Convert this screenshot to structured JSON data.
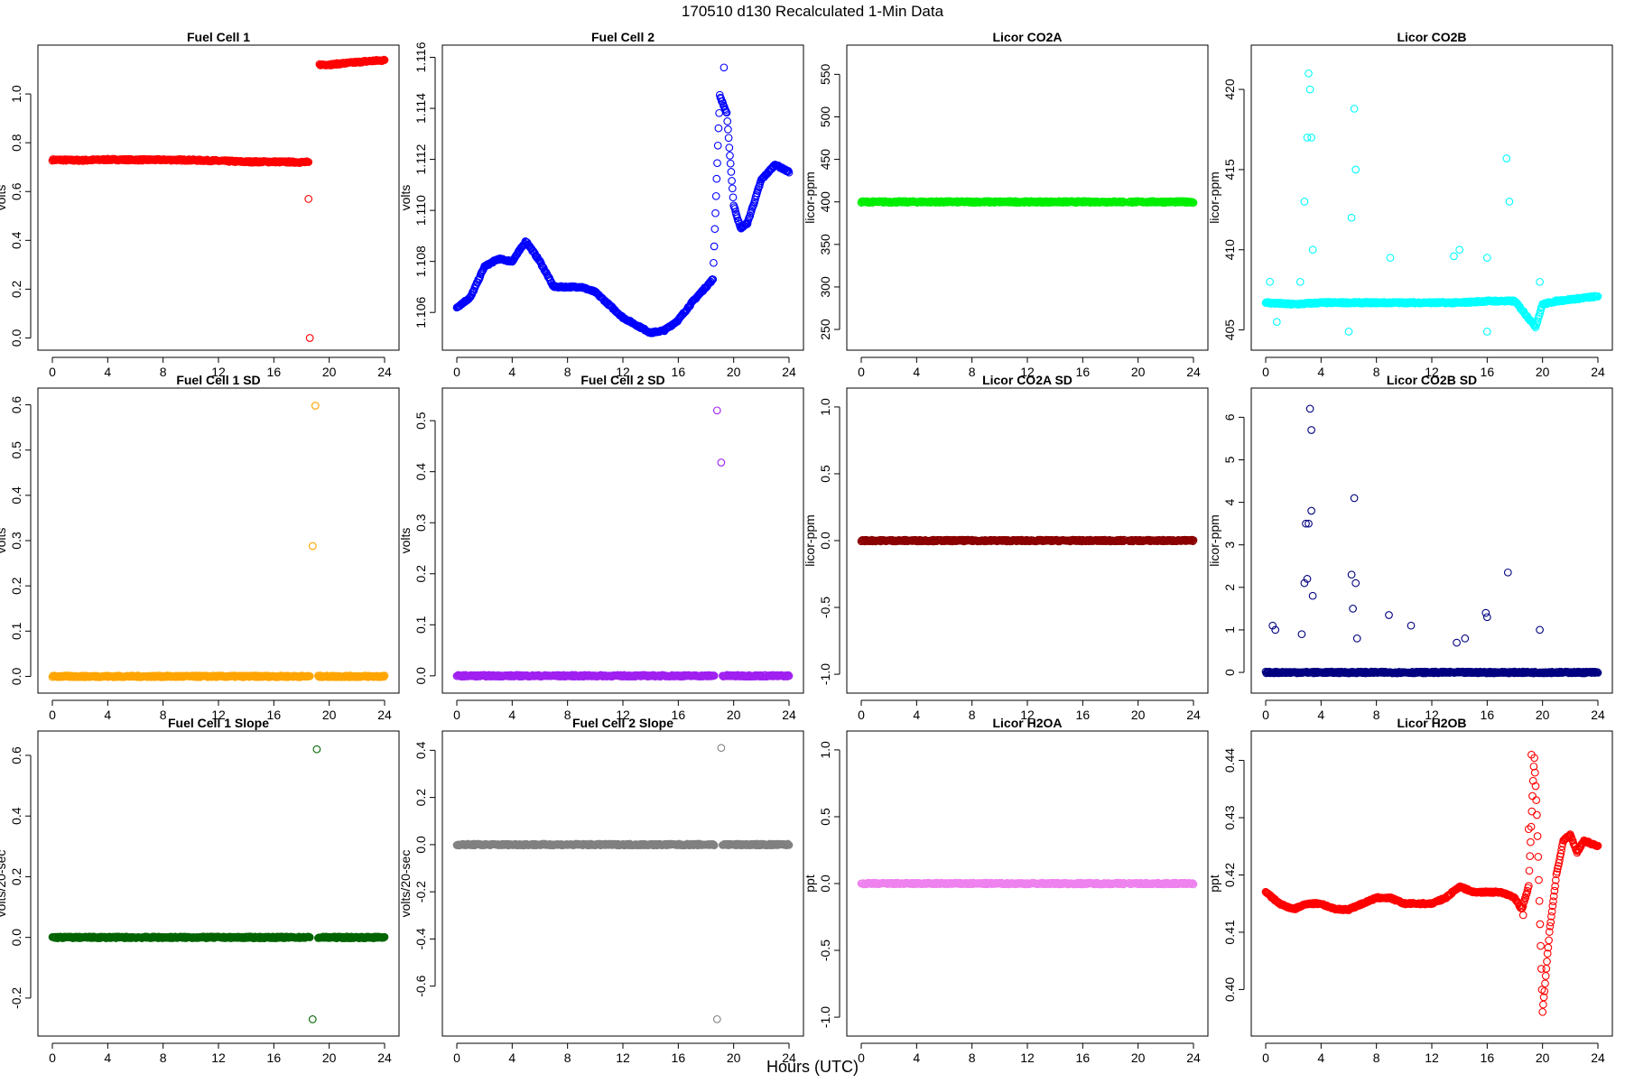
{
  "figure": {
    "title": "170510    d130    Recalculated 1-Min Data",
    "xlabel": "Hours (UTC)"
  },
  "chart_data": [
    {
      "type": "scatter",
      "title": "Fuel Cell 1",
      "ylabel": "volts",
      "color": "#ff0000",
      "xlim": [
        0,
        24
      ],
      "ylim": [
        0,
        1.15
      ],
      "xticks": [
        "0",
        "4",
        "8",
        "12",
        "16",
        "20",
        "24"
      ],
      "yticks": [
        "0.0",
        "0.2",
        "0.4",
        "0.6",
        "0.8",
        "1.0"
      ],
      "series": [
        {
          "x": [
            0,
            2,
            4,
            6,
            8,
            10,
            12,
            14,
            16,
            18.5
          ],
          "y": [
            0.73,
            0.728,
            0.731,
            0.73,
            0.73,
            0.729,
            0.726,
            0.722,
            0.722,
            0.72
          ]
        },
        {
          "x": [
            19.3,
            20,
            21,
            22,
            23,
            24
          ],
          "y": [
            1.12,
            1.12,
            1.125,
            1.13,
            1.135,
            1.138
          ]
        }
      ],
      "outliers": {
        "x": [
          18.5,
          18.6
        ],
        "y": [
          0.57,
          0.0
        ]
      }
    },
    {
      "type": "scatter",
      "title": "Fuel Cell 2",
      "ylabel": "volts",
      "color": "#0000ff",
      "xlim": [
        0,
        24
      ],
      "ylim": [
        1.105,
        1.116
      ],
      "xticks": [
        "0",
        "4",
        "8",
        "12",
        "16",
        "20",
        "24"
      ],
      "yticks": [
        "1.106",
        "1.108",
        "1.110",
        "1.112",
        "1.114",
        "1.116"
      ],
      "series": [
        {
          "x": [
            0,
            1,
            2,
            3,
            4,
            5,
            6,
            7,
            8,
            9,
            10,
            11,
            12,
            13,
            14,
            15,
            16,
            17,
            18,
            18.5,
            19,
            19.5,
            20,
            20.5,
            21,
            22,
            23,
            24
          ],
          "y": [
            1.1062,
            1.1066,
            1.1078,
            1.1081,
            1.108,
            1.1088,
            1.108,
            1.107,
            1.107,
            1.107,
            1.1068,
            1.1063,
            1.1058,
            1.1055,
            1.1052,
            1.1053,
            1.1057,
            1.1064,
            1.107,
            1.1073,
            1.1145,
            1.1138,
            1.1102,
            1.1093,
            1.1095,
            1.1112,
            1.1118,
            1.1115
          ]
        }
      ],
      "outliers": {
        "x": [
          19.3
        ],
        "y": [
          1.1156
        ]
      }
    },
    {
      "type": "scatter",
      "title": "Licor CO2A",
      "ylabel": "licor-ppm",
      "color": "#00ee00",
      "xlim": [
        0,
        24
      ],
      "ylim": [
        240,
        570
      ],
      "xticks": [
        "0",
        "4",
        "8",
        "12",
        "16",
        "20",
        "24"
      ],
      "yticks": [
        "250",
        "300",
        "350",
        "400",
        "450",
        "500",
        "550"
      ],
      "series": [
        {
          "x": [
            0,
            19
          ],
          "y": [
            400,
            400
          ]
        },
        {
          "x": [
            19.3,
            24
          ],
          "y": [
            400,
            400
          ]
        }
      ],
      "outliers": {
        "x": [],
        "y": []
      }
    },
    {
      "type": "scatter",
      "title": "Licor CO2B",
      "ylabel": "licor-ppm",
      "color": "#00ffff",
      "xlim": [
        0,
        24
      ],
      "ylim": [
        404.5,
        422
      ],
      "xticks": [
        "0",
        "4",
        "8",
        "12",
        "16",
        "20",
        "24"
      ],
      "yticks": [
        "405",
        "410",
        "415",
        "420"
      ],
      "series": [
        {
          "x": [
            0,
            2,
            4,
            6,
            8,
            10,
            12,
            14,
            16,
            18,
            19.5,
            20,
            21,
            22,
            23,
            24
          ],
          "y": [
            406.7,
            406.6,
            406.7,
            406.7,
            406.7,
            406.7,
            406.7,
            406.7,
            406.8,
            406.8,
            405.2,
            406.6,
            406.8,
            406.9,
            407.0,
            407.1
          ]
        }
      ],
      "outliers": {
        "x": [
          2.5,
          2.8,
          3.0,
          3.1,
          3.2,
          3.3,
          3.4,
          6.2,
          6.4,
          6.5,
          9.0,
          13.6,
          14.0,
          16.0,
          17.4,
          17.6,
          19.8,
          0.3,
          0.8,
          6.0,
          16.0
        ],
        "y": [
          408,
          413,
          417,
          421,
          420,
          417,
          410,
          412,
          418.8,
          415,
          409.5,
          409.6,
          410,
          409.5,
          415.7,
          413,
          408,
          408,
          405.5,
          404.9,
          404.9
        ]
      }
    },
    {
      "type": "scatter",
      "title": "Fuel Cell 1 SD",
      "ylabel": "volts",
      "color": "#ffa500",
      "xlim": [
        0,
        24
      ],
      "ylim": [
        -0.01,
        0.61
      ],
      "xticks": [
        "0",
        "4",
        "8",
        "12",
        "16",
        "20",
        "24"
      ],
      "yticks": [
        "0.0",
        "0.1",
        "0.2",
        "0.3",
        "0.4",
        "0.5",
        "0.6"
      ],
      "series": [
        {
          "x": [
            0,
            18.6
          ],
          "y": [
            0,
            0
          ]
        },
        {
          "x": [
            19.2,
            24
          ],
          "y": [
            0,
            0
          ]
        }
      ],
      "outliers": {
        "x": [
          18.8,
          19.0
        ],
        "y": [
          0.288,
          0.598
        ]
      }
    },
    {
      "type": "scatter",
      "title": "Fuel Cell 2 SD",
      "ylabel": "volts",
      "color": "#a020f0",
      "xlim": [
        0,
        24
      ],
      "ylim": [
        -0.01,
        0.54
      ],
      "xticks": [
        "0",
        "4",
        "8",
        "12",
        "16",
        "20",
        "24"
      ],
      "yticks": [
        "0.0",
        "0.1",
        "0.2",
        "0.3",
        "0.4",
        "0.5"
      ],
      "series": [
        {
          "x": [
            0,
            18.6
          ],
          "y": [
            0,
            0
          ]
        },
        {
          "x": [
            19.2,
            24
          ],
          "y": [
            0,
            0
          ]
        }
      ],
      "outliers": {
        "x": [
          18.8,
          19.1
        ],
        "y": [
          0.52,
          0.418
        ]
      }
    },
    {
      "type": "scatter",
      "title": "Licor CO2A SD",
      "ylabel": "licor-ppm",
      "color": "#8b0000",
      "xlim": [
        0,
        24
      ],
      "ylim": [
        -1.05,
        1.05
      ],
      "xticks": [
        "0",
        "4",
        "8",
        "12",
        "16",
        "20",
        "24"
      ],
      "yticks": [
        "-1.0",
        "-0.5",
        "0.0",
        "0.5",
        "1.0"
      ],
      "series": [
        {
          "x": [
            0,
            19
          ],
          "y": [
            0,
            0
          ]
        },
        {
          "x": [
            19.3,
            24
          ],
          "y": [
            0,
            0
          ]
        }
      ],
      "outliers": {
        "x": [],
        "y": []
      }
    },
    {
      "type": "scatter",
      "title": "Licor CO2B SD",
      "ylabel": "licor-ppm",
      "color": "#000080",
      "xlim": [
        0,
        24
      ],
      "ylim": [
        -0.2,
        6.4
      ],
      "xticks": [
        "0",
        "4",
        "8",
        "12",
        "16",
        "20",
        "24"
      ],
      "yticks": [
        "0",
        "1",
        "2",
        "3",
        "4",
        "5",
        "6"
      ],
      "series": [
        {
          "x": [
            0,
            24
          ],
          "y": [
            0,
            0
          ]
        }
      ],
      "outliers": {
        "x": [
          0.5,
          0.7,
          2.8,
          2.9,
          3.0,
          3.1,
          3.2,
          3.3,
          3.3,
          3.4,
          2.6,
          6.2,
          6.4,
          6.5,
          6.3,
          6.6,
          8.9,
          10.5,
          13.8,
          14.4,
          15.9,
          16.0,
          17.5,
          19.8
        ],
        "y": [
          1.1,
          1.0,
          2.1,
          3.5,
          2.2,
          3.5,
          6.2,
          5.7,
          3.8,
          1.8,
          0.9,
          2.3,
          4.1,
          2.1,
          1.5,
          0.8,
          1.35,
          1.1,
          0.7,
          0.8,
          1.4,
          1.3,
          2.35,
          1.0
        ]
      }
    },
    {
      "type": "scatter",
      "title": "Fuel Cell 1 Slope",
      "ylabel": "volts/20-sec",
      "color": "#006400",
      "xlim": [
        0,
        24
      ],
      "ylim": [
        -0.285,
        0.64
      ],
      "xticks": [
        "0",
        "4",
        "8",
        "12",
        "16",
        "20",
        "24"
      ],
      "yticks": [
        "-0.2",
        "0.0",
        "0.2",
        "0.4",
        "0.6"
      ],
      "series": [
        {
          "x": [
            0,
            18.6
          ],
          "y": [
            0,
            0
          ]
        },
        {
          "x": [
            19.2,
            24
          ],
          "y": [
            0,
            0
          ]
        }
      ],
      "outliers": {
        "x": [
          18.8,
          19.1
        ],
        "y": [
          -0.27,
          0.62
        ]
      }
    },
    {
      "type": "scatter",
      "title": "Fuel Cell 2 Slope",
      "ylabel": "volts/20-sec",
      "color": "#808080",
      "xlim": [
        0,
        24
      ],
      "ylim": [
        -0.76,
        0.43
      ],
      "xticks": [
        "0",
        "4",
        "8",
        "12",
        "16",
        "20",
        "24"
      ],
      "yticks": [
        "-0.6",
        "-0.4",
        "-0.2",
        "0.0",
        "0.2",
        "0.4"
      ],
      "series": [
        {
          "x": [
            0,
            18.6
          ],
          "y": [
            0,
            0
          ]
        },
        {
          "x": [
            19.2,
            24
          ],
          "y": [
            0,
            0
          ]
        }
      ],
      "outliers": {
        "x": [
          18.8,
          19.1
        ],
        "y": [
          -0.74,
          0.41
        ]
      }
    },
    {
      "type": "scatter",
      "title": "Licor H2OA",
      "ylabel": "ppt",
      "color": "#ee82ee",
      "xlim": [
        0,
        24
      ],
      "ylim": [
        -1.05,
        1.05
      ],
      "xticks": [
        "0",
        "4",
        "8",
        "12",
        "16",
        "20",
        "24"
      ],
      "yticks": [
        "-1.0",
        "-0.5",
        "0.0",
        "0.5",
        "1.0"
      ],
      "series": [
        {
          "x": [
            0,
            19
          ],
          "y": [
            0,
            0
          ]
        },
        {
          "x": [
            19.3,
            24
          ],
          "y": [
            0,
            0
          ]
        }
      ],
      "outliers": {
        "x": [],
        "y": []
      }
    },
    {
      "type": "scatter",
      "title": "Licor H2OB",
      "ylabel": "ppt",
      "color": "#ff0000",
      "xlim": [
        0,
        24
      ],
      "ylim": [
        0.394,
        0.443
      ],
      "xticks": [
        "0",
        "4",
        "8",
        "12",
        "16",
        "20",
        "24"
      ],
      "yticks": [
        "0.40",
        "0.41",
        "0.42",
        "0.43",
        "0.44"
      ],
      "series": [
        {
          "x": [
            0,
            1,
            2,
            3,
            4,
            5,
            6,
            7,
            8,
            9,
            10,
            11,
            12,
            13,
            14,
            15,
            16,
            17,
            18,
            18.5,
            19,
            19.4,
            19.6,
            20,
            20.5,
            21,
            21.5,
            22,
            22.5,
            23,
            24
          ],
          "y": [
            0.417,
            0.415,
            0.414,
            0.415,
            0.415,
            0.414,
            0.414,
            0.415,
            0.416,
            0.416,
            0.415,
            0.415,
            0.415,
            0.416,
            0.418,
            0.417,
            0.417,
            0.417,
            0.416,
            0.414,
            0.418,
            0.441,
            0.43,
            0.396,
            0.41,
            0.42,
            0.426,
            0.427,
            0.424,
            0.426,
            0.425
          ]
        }
      ],
      "outliers": {
        "x": [
          18.6,
          19.0,
          19.2
        ],
        "y": [
          0.413,
          0.428,
          0.441
        ]
      }
    }
  ]
}
